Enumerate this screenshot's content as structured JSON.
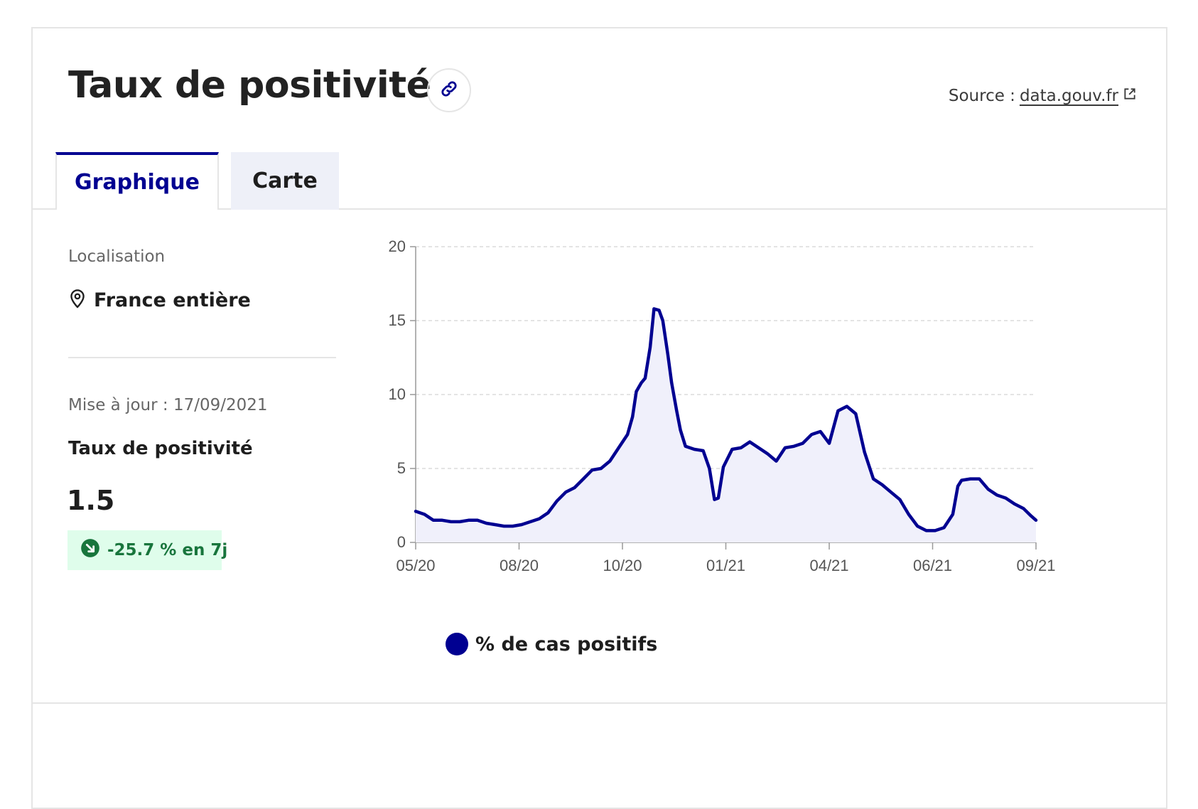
{
  "header": {
    "title": "Taux de positivité",
    "source_prefix": "Source :",
    "source_link": "data.gouv.fr"
  },
  "tabs": [
    {
      "label": "Graphique",
      "active": true
    },
    {
      "label": "Carte",
      "active": false
    }
  ],
  "sidebar": {
    "location_label": "Localisation",
    "location_value": "France entière",
    "update_text": "Mise à jour : 17/09/2021",
    "metric_label": "Taux de positivité",
    "metric_value": "1.5",
    "trend_text": "-25.7 % en 7j"
  },
  "colors": {
    "accent": "#000091",
    "trend_bg": "#dffdeb",
    "trend_fg": "#18753c",
    "area_fill": "#f0f0fb"
  },
  "icons": {
    "link": "link-icon",
    "external": "external-link-icon",
    "location": "location-pin-icon",
    "trend": "arrow-down-right-icon"
  },
  "chart_data": {
    "type": "area",
    "title": "",
    "xlabel": "",
    "ylabel": "",
    "ylim": [
      0,
      20
    ],
    "yticks": [
      "0",
      "5",
      "10",
      "15",
      "20"
    ],
    "xticks": [
      "05/20",
      "08/20",
      "10/20",
      "01/21",
      "04/21",
      "06/21",
      "09/21"
    ],
    "xlim": [
      "2020-05-13",
      "2021-09-17"
    ],
    "grid": "horizontal dashed",
    "legend": "bottom-left",
    "series": [
      {
        "name": "% de cas positifs",
        "color": "#000091",
        "points": [
          [
            "2020-05-13",
            2.1
          ],
          [
            "2020-05-20",
            1.9
          ],
          [
            "2020-05-27",
            1.5
          ],
          [
            "2020-06-03",
            1.5
          ],
          [
            "2020-06-10",
            1.4
          ],
          [
            "2020-06-17",
            1.4
          ],
          [
            "2020-06-24",
            1.5
          ],
          [
            "2020-07-01",
            1.5
          ],
          [
            "2020-07-08",
            1.3
          ],
          [
            "2020-07-15",
            1.2
          ],
          [
            "2020-07-22",
            1.1
          ],
          [
            "2020-07-29",
            1.1
          ],
          [
            "2020-08-05",
            1.2
          ],
          [
            "2020-08-12",
            1.4
          ],
          [
            "2020-08-19",
            1.6
          ],
          [
            "2020-08-26",
            2.0
          ],
          [
            "2020-09-02",
            2.8
          ],
          [
            "2020-09-09",
            3.4
          ],
          [
            "2020-09-16",
            3.7
          ],
          [
            "2020-09-23",
            4.3
          ],
          [
            "2020-09-30",
            4.9
          ],
          [
            "2020-10-07",
            5.0
          ],
          [
            "2020-10-14",
            5.5
          ],
          [
            "2020-10-21",
            6.4
          ],
          [
            "2020-10-28",
            7.3
          ],
          [
            "2020-11-01",
            8.5
          ],
          [
            "2020-11-04",
            10.2
          ],
          [
            "2020-11-08",
            10.8
          ],
          [
            "2020-11-11",
            11.1
          ],
          [
            "2020-11-15",
            13.2
          ],
          [
            "2020-11-18",
            15.8
          ],
          [
            "2020-11-22",
            15.7
          ],
          [
            "2020-11-25",
            15.0
          ],
          [
            "2020-11-29",
            12.7
          ],
          [
            "2020-12-02",
            10.8
          ],
          [
            "2020-12-06",
            8.9
          ],
          [
            "2020-12-09",
            7.6
          ],
          [
            "2020-12-13",
            6.5
          ],
          [
            "2020-12-20",
            6.3
          ],
          [
            "2020-12-27",
            6.2
          ],
          [
            "2021-01-01",
            5.0
          ],
          [
            "2021-01-05",
            2.9
          ],
          [
            "2021-01-08",
            3.0
          ],
          [
            "2021-01-12",
            5.1
          ],
          [
            "2021-01-19",
            6.3
          ],
          [
            "2021-01-26",
            6.4
          ],
          [
            "2021-02-02",
            6.8
          ],
          [
            "2021-02-09",
            6.4
          ],
          [
            "2021-02-16",
            6.0
          ],
          [
            "2021-02-23",
            5.5
          ],
          [
            "2021-03-02",
            6.4
          ],
          [
            "2021-03-09",
            6.5
          ],
          [
            "2021-03-16",
            6.7
          ],
          [
            "2021-03-23",
            7.3
          ],
          [
            "2021-03-30",
            7.5
          ],
          [
            "2021-04-06",
            6.7
          ],
          [
            "2021-04-13",
            8.9
          ],
          [
            "2021-04-20",
            9.2
          ],
          [
            "2021-04-27",
            8.7
          ],
          [
            "2021-05-04",
            6.1
          ],
          [
            "2021-05-11",
            4.3
          ],
          [
            "2021-05-18",
            3.9
          ],
          [
            "2021-05-25",
            3.4
          ],
          [
            "2021-06-01",
            2.9
          ],
          [
            "2021-06-08",
            1.9
          ],
          [
            "2021-06-15",
            1.1
          ],
          [
            "2021-06-22",
            0.8
          ],
          [
            "2021-06-29",
            0.8
          ],
          [
            "2021-07-06",
            1.0
          ],
          [
            "2021-07-13",
            1.9
          ],
          [
            "2021-07-17",
            3.8
          ],
          [
            "2021-07-20",
            4.2
          ],
          [
            "2021-07-27",
            4.3
          ],
          [
            "2021-08-03",
            4.3
          ],
          [
            "2021-08-10",
            3.6
          ],
          [
            "2021-08-17",
            3.2
          ],
          [
            "2021-08-24",
            3.0
          ],
          [
            "2021-08-31",
            2.6
          ],
          [
            "2021-09-07",
            2.3
          ],
          [
            "2021-09-13",
            1.8
          ],
          [
            "2021-09-17",
            1.5
          ]
        ]
      }
    ]
  }
}
